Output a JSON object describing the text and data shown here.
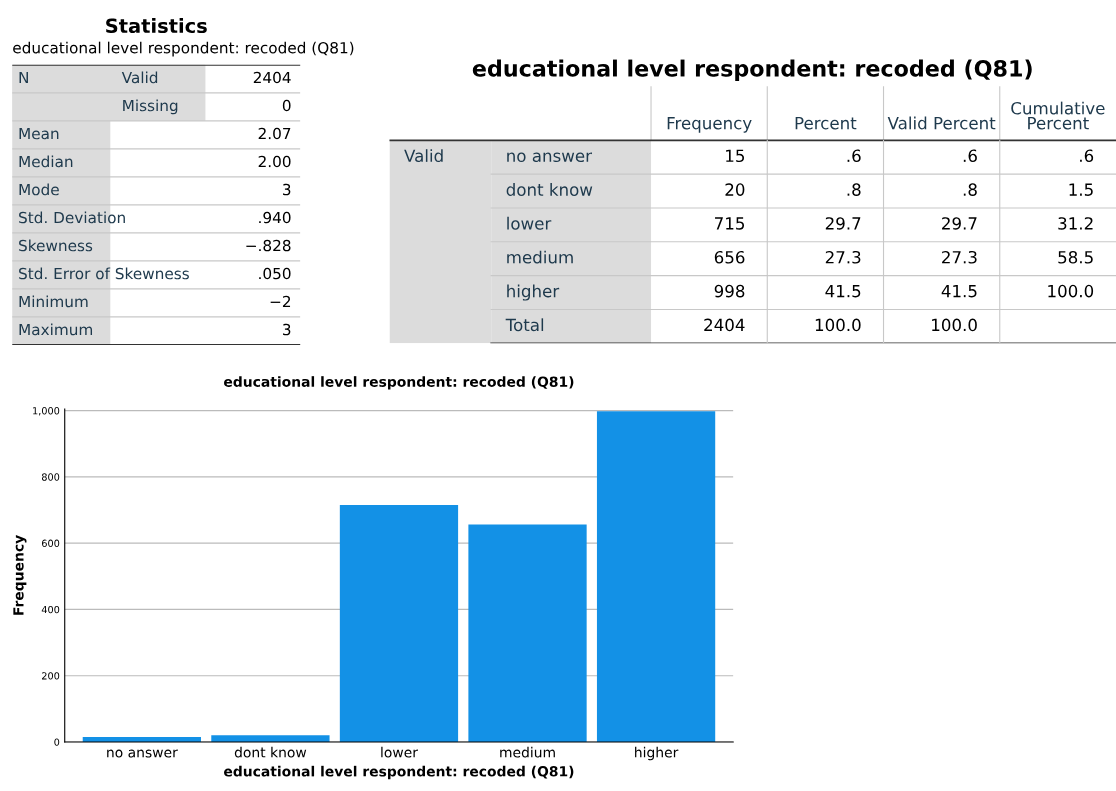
{
  "chart_data": [
    {
      "type": "other",
      "title": "Statistics",
      "subtitle": "educational level respondent: recoded (Q81)",
      "y_categories": [
        "N",
        null,
        "Mean",
        "Median",
        "Mode",
        "Std. Deviation",
        "Skewness",
        "Std. Error of Skewness",
        "Minimum",
        "Maximum"
      ],
      "cell_labels": [
        [
          "Valid",
          "2404"
        ],
        [
          "Missing",
          "0"
        ],
        [
          null,
          "2.07"
        ],
        [
          null,
          "2.00"
        ],
        [
          null,
          "3"
        ],
        [
          null,
          ".940"
        ],
        [
          null,
          "−.828"
        ],
        [
          null,
          ".050"
        ],
        [
          null,
          "−2"
        ],
        [
          null,
          "3"
        ]
      ]
    },
    {
      "type": "other",
      "title": "educational level respondent: recoded (Q81)",
      "annotations": [
        "Valid"
      ],
      "categories": [
        "Frequency",
        "Percent",
        "Valid Percent",
        "Cumulative\nPercent"
      ],
      "y_categories": [
        "no answer",
        "dont know",
        "lower",
        "medium",
        "higher",
        "Total"
      ],
      "cell_labels": [
        [
          "15",
          ".6",
          ".6",
          ".6"
        ],
        [
          "20",
          ".8",
          ".8",
          "1.5"
        ],
        [
          "715",
          "29.7",
          "29.7",
          "31.2"
        ],
        [
          "656",
          "27.3",
          "27.3",
          "58.5"
        ],
        [
          "998",
          "41.5",
          "41.5",
          "100.0"
        ],
        [
          "2404",
          "100.0",
          "100.0",
          null
        ]
      ]
    },
    {
      "type": "bar",
      "title": "educational level respondent: recoded (Q81)",
      "xlabel": "educational level respondent: recoded (Q81)",
      "ylabel": "Frequency",
      "categories": [
        "no answer",
        "dont know",
        "lower",
        "medium",
        "higher"
      ],
      "values": [
        15,
        20,
        715,
        656,
        998
      ],
      "color": "#1391e6",
      "ylim": [
        0,
        1005
      ],
      "yticks": [
        0,
        200,
        400,
        600,
        800,
        {
          "value": 1000,
          "label": "1,000"
        }
      ],
      "grid": "y",
      "legend": false
    }
  ]
}
